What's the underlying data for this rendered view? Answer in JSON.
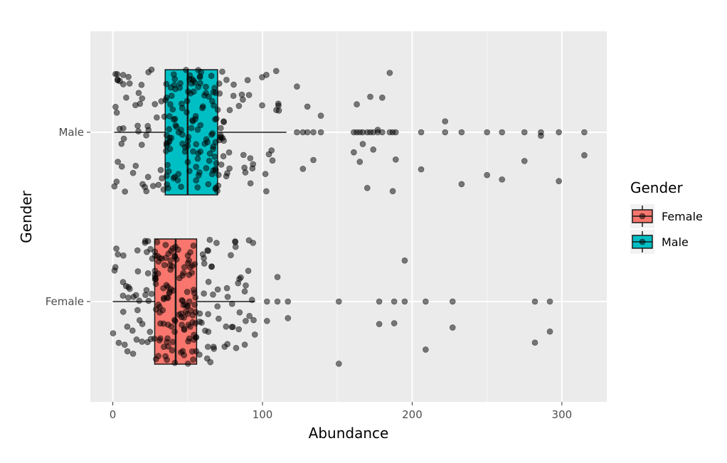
{
  "chart_data": {
    "type": "boxplot",
    "xlabel": "Abundance",
    "ylabel": "Gender",
    "categories": [
      "Female",
      "Male"
    ],
    "xlim": [
      -15,
      330
    ],
    "x_ticks": [
      0,
      100,
      200,
      300
    ],
    "x_tick_labels": [
      "0",
      "100",
      "200",
      "300"
    ],
    "grid": true,
    "legend": {
      "title": "Gender",
      "position": "right",
      "entries": [
        {
          "label": "Female",
          "color": "#F8766D"
        },
        {
          "label": "Male",
          "color": "#00BFC4"
        }
      ]
    },
    "series": [
      {
        "name": "Female",
        "color": "#F8766D",
        "box": {
          "whisker_low": 0,
          "q1": 28,
          "median": 42,
          "q3": 56,
          "whisker_high": 95
        },
        "outliers": [
          103,
          110,
          117,
          151,
          178,
          188,
          195,
          209,
          227,
          282,
          292
        ]
      },
      {
        "name": "Male",
        "color": "#00BFC4",
        "box": {
          "whisker_low": 1,
          "q1": 35,
          "median": 50,
          "q3": 70,
          "whisker_high": 116
        },
        "outliers": [
          123,
          127,
          130,
          134,
          139,
          161,
          163,
          165,
          167,
          170,
          172,
          174,
          177,
          180,
          185,
          187,
          189,
          206,
          222,
          233,
          250,
          260,
          275,
          286,
          298,
          315
        ]
      }
    ]
  }
}
